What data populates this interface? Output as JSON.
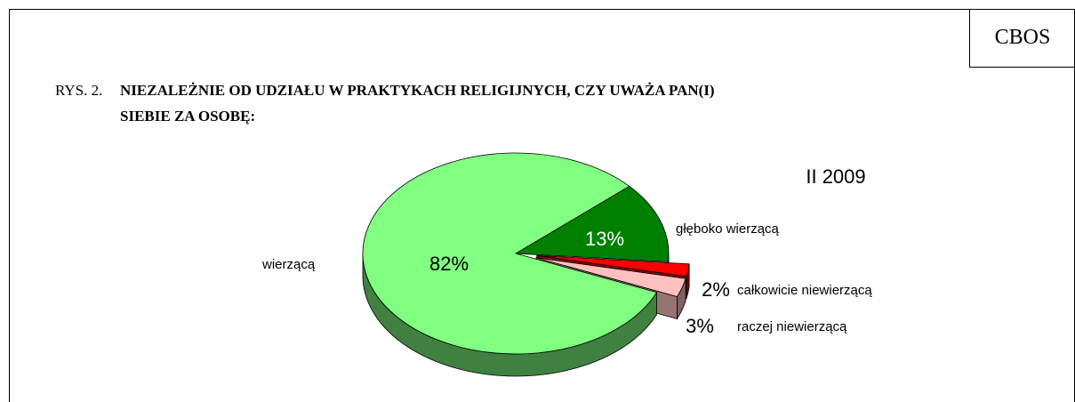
{
  "header": {
    "logo": "CBOS"
  },
  "chart_data": {
    "type": "pie3d",
    "figure_label": "RYS. 2.",
    "title": [
      "NIEZALEŻNIE OD UDZIAŁU W PRAKTYKACH RELIGIJNYCH, CZY UWAŻA PAN(I)",
      "SIEBIE ZA OSOBĘ:"
    ],
    "subtitle": "II 2009",
    "categories": [
      "głęboko wierzącą",
      "całkowicie niewierzącą",
      "raczej niewierzącą",
      "wierzącą"
    ],
    "values": [
      13,
      2,
      3,
      82
    ],
    "value_labels": [
      "13%",
      "2%",
      "3%",
      "82%"
    ],
    "colors": [
      "#008000",
      "#ff0000",
      "#ffc0c0",
      "#80ff80"
    ],
    "exploded": [
      false,
      true,
      true,
      false
    ]
  }
}
